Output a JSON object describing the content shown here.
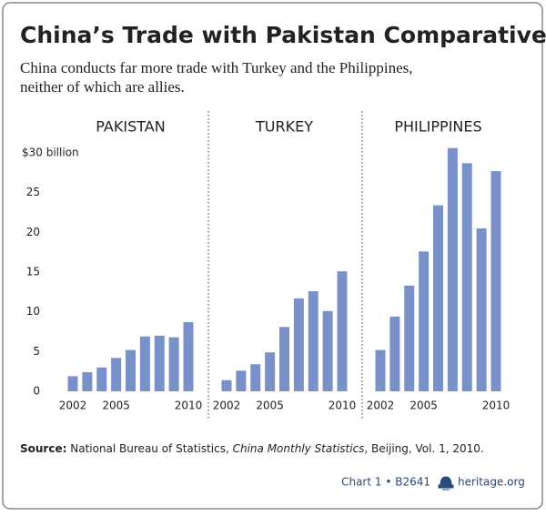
{
  "header": {
    "title": "China’s Trade with Pakistan Comparatively Modest",
    "subtitle_lines": [
      "China conducts far more trade with Turkey and the Philippines,",
      "neither of which are allies."
    ]
  },
  "chart_data": [
    {
      "type": "bar",
      "title": "PAKISTAN",
      "color": "#7a90c8",
      "categories": [
        "2002",
        null,
        null,
        "2005",
        null,
        null,
        null,
        null,
        "2010"
      ],
      "values": [
        1.9,
        2.4,
        3.0,
        4.2,
        5.2,
        6.9,
        7.0,
        6.8,
        8.7
      ],
      "ylim": [
        0,
        30
      ],
      "yticks": [
        0,
        5,
        10,
        15,
        20,
        25,
        {
          "value": 30,
          "label": "$30 billion"
        }
      ]
    },
    {
      "type": "bar",
      "title": "TURKEY",
      "color": "#7a90c8",
      "categories": [
        "2002",
        null,
        null,
        "2005",
        null,
        null,
        null,
        null,
        "2010"
      ],
      "values": [
        1.4,
        2.6,
        3.4,
        4.9,
        8.1,
        11.7,
        12.6,
        10.1,
        15.1
      ],
      "ylim": [
        0,
        30
      ]
    },
    {
      "type": "bar",
      "title": "PHILIPPINES",
      "color": "#7a90c8",
      "categories": [
        "2002",
        null,
        null,
        "2005",
        null,
        null,
        null,
        null,
        "2010"
      ],
      "values": [
        5.2,
        9.4,
        13.3,
        17.6,
        23.4,
        30.6,
        28.7,
        20.5,
        27.7
      ],
      "ylim": [
        0,
        30
      ]
    }
  ],
  "footer": {
    "source_label": "Source:",
    "source_text": "National Bureau of Statistics,",
    "source_italic": "China Monthly Statistics",
    "source_end": ", Beijing, Vol. 1, 2010.",
    "chart_id": "Chart 1 • B2641",
    "brand": "heritage.org"
  }
}
